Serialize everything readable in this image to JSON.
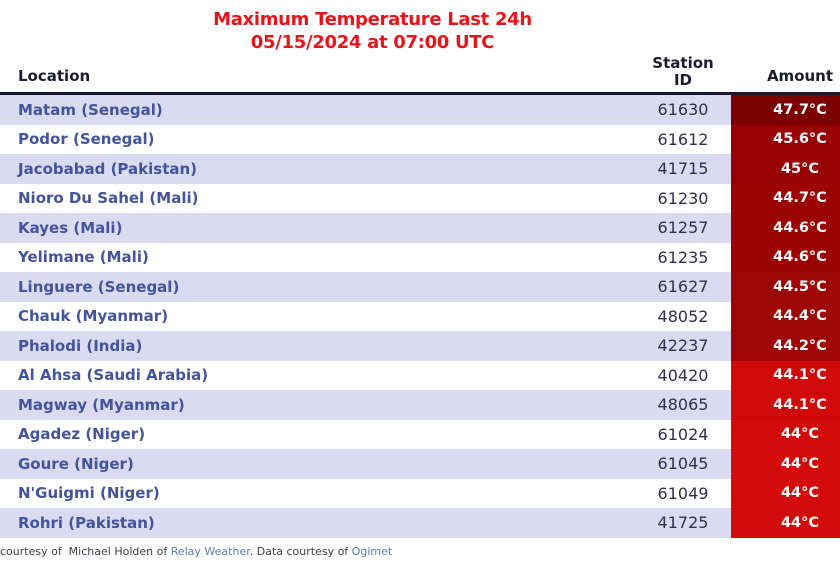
{
  "title": {
    "line1": "Maximum Temperature Last 24h",
    "line2": "05/15/2024 at 07:00 UTC"
  },
  "table": {
    "header": {
      "location": "Location",
      "station": "Station\nID",
      "amount": "Amount"
    },
    "rows": [
      {
        "location": "Matam (Senegal)",
        "station_id": "61630",
        "amount": "47.7°C",
        "amount_bg": "#7d0000"
      },
      {
        "location": "Podor (Senegal)",
        "station_id": "61612",
        "amount": "45.6°C",
        "amount_bg": "#990202"
      },
      {
        "location": "Jacobabad (Pakistan)",
        "station_id": "41715",
        "amount": "45°C",
        "amount_bg": "#990202"
      },
      {
        "location": "Nioro Du Sahel (Mali)",
        "station_id": "61230",
        "amount": "44.7°C",
        "amount_bg": "#9c0404"
      },
      {
        "location": "Kayes (Mali)",
        "station_id": "61257",
        "amount": "44.6°C",
        "amount_bg": "#9c0404"
      },
      {
        "location": "Yelimane (Mali)",
        "station_id": "61235",
        "amount": "44.6°C",
        "amount_bg": "#9c0404"
      },
      {
        "location": "Linguere (Senegal)",
        "station_id": "61627",
        "amount": "44.5°C",
        "amount_bg": "#9e0505"
      },
      {
        "location": "Chauk (Myanmar)",
        "station_id": "48052",
        "amount": "44.4°C",
        "amount_bg": "#9e0505"
      },
      {
        "location": "Phalodi (India)",
        "station_id": "42237",
        "amount": "44.2°C",
        "amount_bg": "#a00606"
      },
      {
        "location": "Al Ahsa (Saudi Arabia)",
        "station_id": "40420",
        "amount": "44.1°C",
        "amount_bg": "#d00a0a"
      },
      {
        "location": "Magway (Myanmar)",
        "station_id": "48065",
        "amount": "44.1°C",
        "amount_bg": "#d00a0a"
      },
      {
        "location": "Agadez (Niger)",
        "station_id": "61024",
        "amount": "44°C",
        "amount_bg": "#d40b0b"
      },
      {
        "location": "Goure (Niger)",
        "station_id": "61045",
        "amount": "44°C",
        "amount_bg": "#d40b0b"
      },
      {
        "location": "N'Guigmi (Niger)",
        "station_id": "61049",
        "amount": "44°C",
        "amount_bg": "#d40b0b"
      },
      {
        "location": "Rohri (Pakistan)",
        "station_id": "41725",
        "amount": "44°C",
        "amount_bg": "#d40b0b"
      }
    ]
  },
  "footer": {
    "prefix": "courtesy of  Michael Holden of ",
    "relay_link": "Relay Weather",
    "separator": ". Data courtesy of ",
    "ogimet_link": "Ogimet"
  },
  "colors": {
    "page_bg": "#ffffff",
    "title_red": "#e8141c",
    "header_text": "#1c1c30",
    "header_border": "#191930",
    "row_alt": "#dadaf0",
    "row_white": "#ffffff",
    "location_text": "#44549c",
    "station_text": "#30304e",
    "amount_text": "#ffffff",
    "footer_text": "#3a3f4d",
    "link_color": "#5c7cae"
  }
}
